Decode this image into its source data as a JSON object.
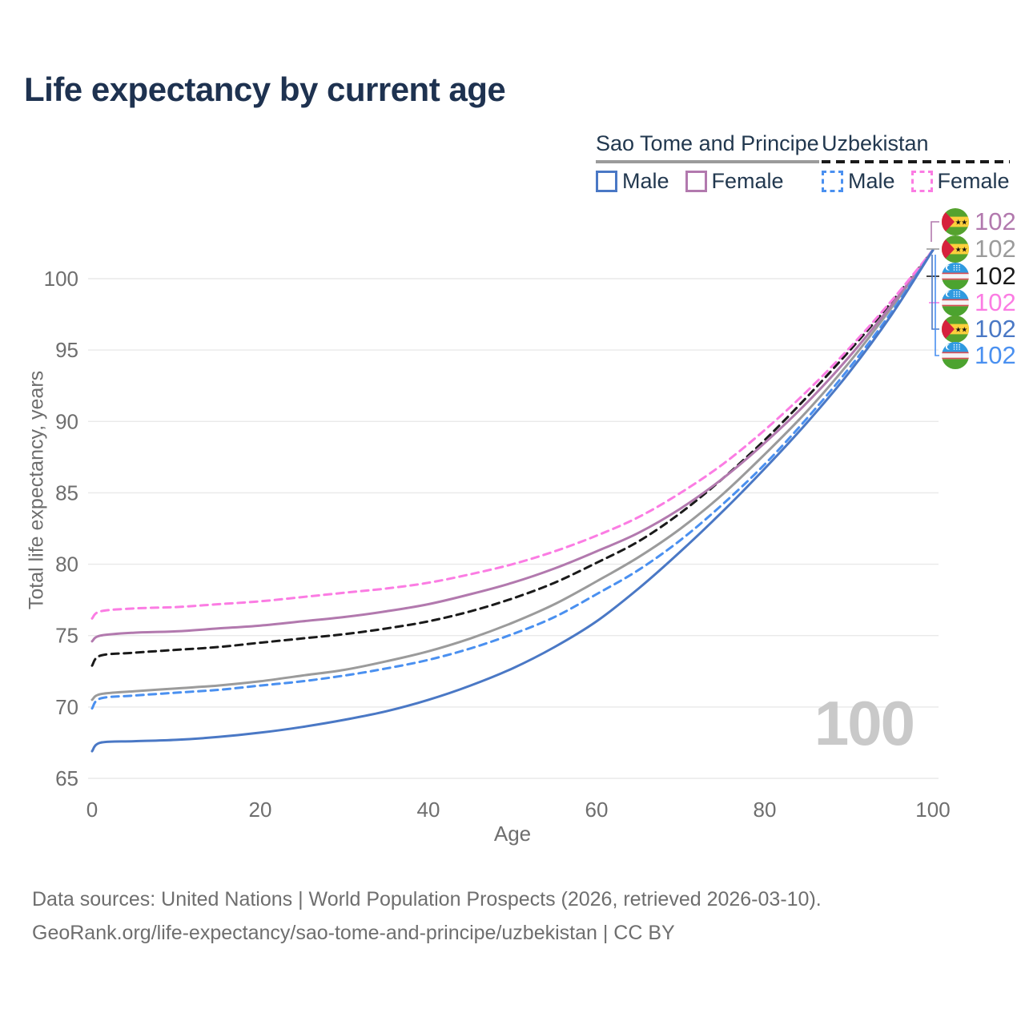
{
  "title": "Life expectancy by current age",
  "watermark": "100",
  "legend": {
    "groups": [
      {
        "name": "Sao Tome and Principe",
        "line_style": "solid",
        "line_color": "#9b9b9b",
        "items": [
          {
            "label": "Male",
            "series_id": "stp_male"
          },
          {
            "label": "Female",
            "series_id": "stp_female"
          }
        ]
      },
      {
        "name": "Uzbekistan",
        "line_style": "dashed",
        "line_color": "#1a1a1a",
        "items": [
          {
            "label": "Male",
            "series_id": "uzb_male"
          },
          {
            "label": "Female",
            "series_id": "uzb_female"
          }
        ]
      }
    ]
  },
  "footer": {
    "line1": "Data sources: United Nations | World Population Prospects (2026, retrieved 2026-03-10).",
    "line2": "GeoRank.org/life-expectancy/sao-tome-and-principe/uzbekistan | CC BY"
  },
  "chart_data": {
    "type": "line",
    "title": "Life expectancy by current age",
    "xlabel": "Age",
    "ylabel": "Total life expectancy, years",
    "xlim": [
      0,
      100
    ],
    "ylim": [
      65,
      102.5
    ],
    "x_ticks": [
      0,
      20,
      40,
      60,
      80,
      100
    ],
    "y_ticks": [
      65,
      70,
      75,
      80,
      85,
      90,
      95,
      100
    ],
    "grid": "horizontal",
    "legend_position": "top-right",
    "ages": [
      0,
      1,
      5,
      10,
      15,
      20,
      25,
      30,
      35,
      40,
      45,
      50,
      55,
      60,
      65,
      70,
      75,
      80,
      85,
      90,
      95,
      100
    ],
    "series": [
      {
        "id": "stp_total",
        "name": "Sao Tome and Principe — Total",
        "country": "Sao Tome and Principe",
        "sex": "Total",
        "color": "#9b9b9b",
        "dash": "solid",
        "values": [
          70.5,
          70.9,
          71.1,
          71.3,
          71.5,
          71.8,
          72.2,
          72.6,
          73.2,
          73.9,
          74.8,
          75.9,
          77.2,
          78.8,
          80.5,
          82.5,
          84.9,
          87.7,
          90.7,
          94.1,
          97.9,
          102
        ]
      },
      {
        "id": "uzb_total",
        "name": "Uzbekistan — Total",
        "country": "Uzbekistan",
        "sex": "Total",
        "color": "#1a1a1a",
        "dash": "dashed",
        "values": [
          72.9,
          73.6,
          73.8,
          74.0,
          74.2,
          74.5,
          74.8,
          75.1,
          75.5,
          76.0,
          76.7,
          77.6,
          78.7,
          80.1,
          81.6,
          83.6,
          86.0,
          88.7,
          91.7,
          94.9,
          98.3,
          102
        ]
      },
      {
        "id": "stp_female",
        "name": "Sao Tome and Principe — Female",
        "country": "Sao Tome and Principe",
        "sex": "Female",
        "color": "#b279ae",
        "dash": "solid",
        "values": [
          74.6,
          75.0,
          75.2,
          75.3,
          75.5,
          75.7,
          76.0,
          76.3,
          76.7,
          77.2,
          77.9,
          78.7,
          79.7,
          80.9,
          82.2,
          83.9,
          86.0,
          88.5,
          91.3,
          94.5,
          98.1,
          102
        ]
      },
      {
        "id": "uzb_female",
        "name": "Uzbekistan — Female",
        "country": "Uzbekistan",
        "sex": "Female",
        "color": "#fb7ce3",
        "dash": "dashed",
        "values": [
          76.2,
          76.7,
          76.9,
          77.0,
          77.2,
          77.4,
          77.7,
          78.0,
          78.3,
          78.7,
          79.3,
          80.0,
          80.9,
          82.0,
          83.3,
          85.0,
          87.0,
          89.4,
          92.1,
          95.1,
          98.4,
          102
        ]
      },
      {
        "id": "uzb_male",
        "name": "Uzbekistan — Male",
        "country": "Uzbekistan",
        "sex": "Male",
        "color": "#4a90f0",
        "dash": "dashed",
        "values": [
          69.9,
          70.6,
          70.8,
          71.0,
          71.2,
          71.5,
          71.8,
          72.2,
          72.7,
          73.3,
          74.1,
          75.1,
          76.3,
          77.9,
          79.6,
          81.7,
          84.2,
          87.0,
          90.2,
          93.7,
          97.6,
          102
        ]
      },
      {
        "id": "stp_male",
        "name": "Sao Tome and Principe — Male",
        "country": "Sao Tome and Principe",
        "sex": "Male",
        "color": "#4a78c5",
        "dash": "solid",
        "values": [
          66.9,
          67.5,
          67.6,
          67.7,
          67.9,
          68.2,
          68.6,
          69.1,
          69.7,
          70.5,
          71.5,
          72.7,
          74.2,
          76.0,
          78.3,
          80.9,
          83.7,
          86.7,
          89.9,
          93.4,
          97.4,
          102
        ]
      }
    ],
    "end_labels": [
      {
        "flag": "stp",
        "value": "102",
        "color": "#b279ae",
        "series": "Sao Tome and Principe — Female"
      },
      {
        "flag": "stp",
        "value": "102",
        "color": "#9b9b9b",
        "series": "Sao Tome and Principe — Total"
      },
      {
        "flag": "uzb",
        "value": "102",
        "color": "#1a1a1a",
        "series": "Uzbekistan — Total"
      },
      {
        "flag": "uzb",
        "value": "102",
        "color": "#fb7ce3",
        "series": "Uzbekistan — Female"
      },
      {
        "flag": "stp",
        "value": "102",
        "color": "#4a78c5",
        "series": "Sao Tome and Principe — Male"
      },
      {
        "flag": "uzb",
        "value": "102",
        "color": "#4a90f0",
        "series": "Uzbekistan — Male"
      }
    ]
  }
}
